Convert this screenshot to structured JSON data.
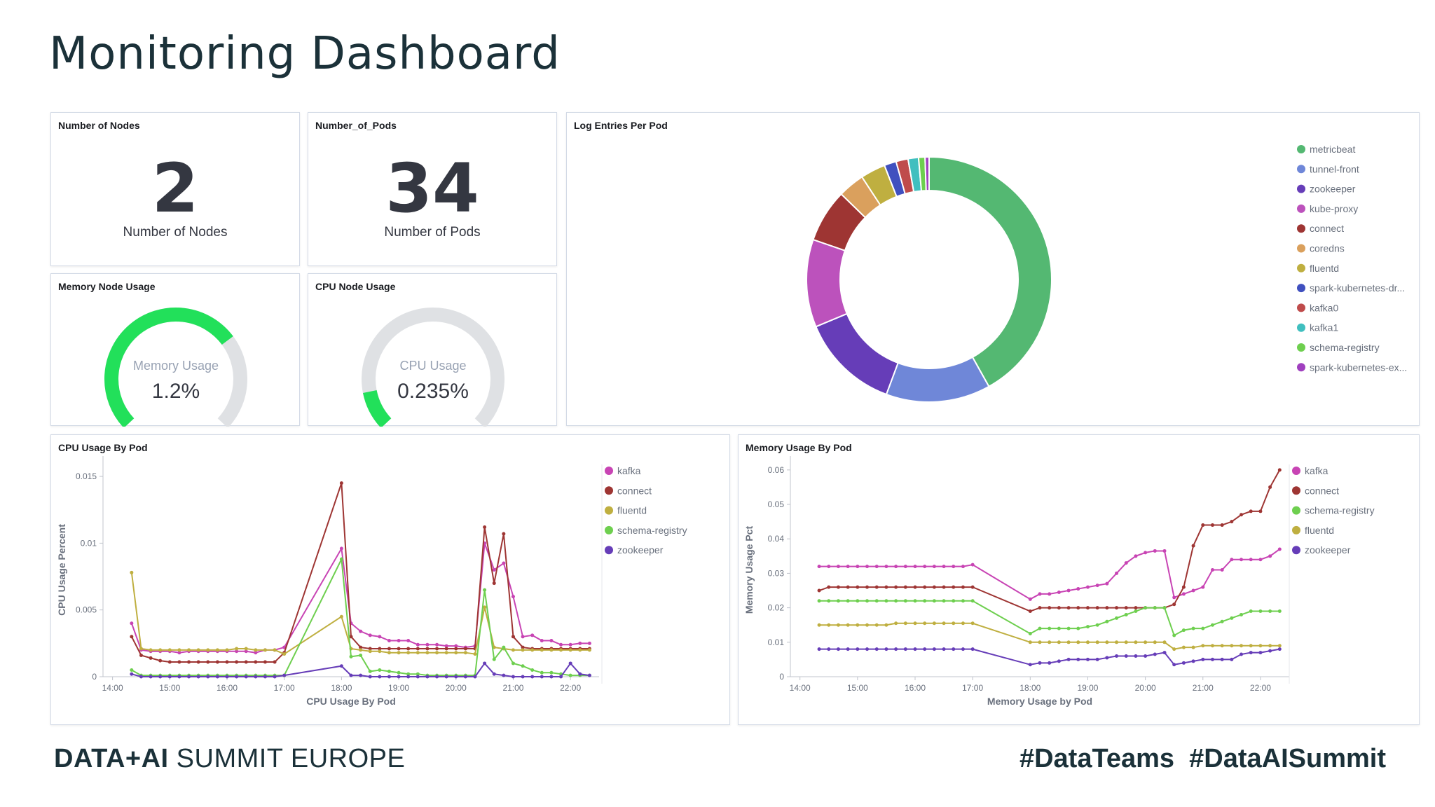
{
  "page": {
    "title": "Monitoring Dashboard"
  },
  "footer": {
    "brand_bold": "DATA+AI",
    "brand_rest": " SUMMIT EUROPE",
    "hashtags": "#DataTeams  #DataAISummit"
  },
  "panels": {
    "nodes": {
      "title": "Number of Nodes",
      "value": "2",
      "label": "Number of Nodes"
    },
    "pods": {
      "title": "Number_of_Pods",
      "value": "34",
      "label": "Number of Pods"
    },
    "memory_gauge": {
      "title": "Memory Node Usage",
      "label": "Memory Usage",
      "value": "1.2%",
      "fraction": 0.7
    },
    "cpu_gauge": {
      "title": "CPU Node Usage",
      "label": "CPU Usage",
      "value": "0.235%",
      "fraction": 0.12
    },
    "log_entries": {
      "title": "Log Entries Per Pod"
    },
    "cpu_by_pod": {
      "title": "CPU Usage By Pod"
    },
    "mem_by_pod": {
      "title": "Memory Usage By Pod"
    }
  },
  "colors": {
    "metricbeat": "#54b872",
    "tunnel-front": "#6f87d8",
    "zookeeper": "#663db8",
    "kube-proxy": "#bc52bc",
    "connect": "#9e3533",
    "coredns": "#daa05d",
    "fluentd": "#bfaf40",
    "spark-kubernetes-dr...": "#4050bf",
    "kafka0": "#bf4b4b",
    "kafka1": "#40bfbf",
    "schema-registry": "#6ecf4f",
    "spark-kubernetes-ex...": "#a040bf",
    "kafka": "#c844b4"
  },
  "chart_data": [
    {
      "type": "pie",
      "title": "Log Entries Per Pod",
      "donut": true,
      "legend_position": "right",
      "categories": [
        "metricbeat",
        "tunnel-front",
        "zookeeper",
        "kube-proxy",
        "connect",
        "coredns",
        "fluentd",
        "spark-kubernetes-dr...",
        "kafka0",
        "kafka1",
        "schema-registry",
        "spark-kubernetes-ex..."
      ],
      "values": [
        39.5,
        13.0,
        12.3,
        10.9,
        6.6,
        3.3,
        3.1,
        1.5,
        1.5,
        1.3,
        0.8,
        0.5
      ]
    },
    {
      "type": "line",
      "title": "CPU Usage By Pod",
      "xlabel": "CPU Usage By Pod",
      "ylabel": "CPU Usage Percent",
      "ylim": [
        0,
        0.016
      ],
      "yticks": [
        0,
        0.005,
        0.01,
        0.015
      ],
      "ytick_labels": [
        "0",
        "0.005",
        "0.01",
        "0.015"
      ],
      "xlim": [
        "13:50",
        "22:30"
      ],
      "xticks": [
        "14:00",
        "15:00",
        "16:00",
        "17:00",
        "18:00",
        "19:00",
        "20:00",
        "21:00",
        "22:00"
      ],
      "legend_position": "top-right",
      "x": [
        "14:20",
        "14:30",
        "14:40",
        "14:50",
        "15:00",
        "15:10",
        "15:20",
        "15:30",
        "15:40",
        "15:50",
        "16:00",
        "16:10",
        "16:20",
        "16:30",
        "16:40",
        "16:50",
        "17:00",
        "18:00",
        "18:10",
        "18:20",
        "18:30",
        "18:40",
        "18:50",
        "19:00",
        "19:10",
        "19:20",
        "19:30",
        "19:40",
        "19:50",
        "20:00",
        "20:10",
        "20:20",
        "20:30",
        "20:40",
        "20:50",
        "21:00",
        "21:10",
        "21:20",
        "21:30",
        "21:40",
        "21:50",
        "22:00",
        "22:10",
        "22:20"
      ],
      "series": [
        {
          "name": "kafka",
          "values": [
            0.004,
            0.002,
            0.0019,
            0.0019,
            0.0019,
            0.0018,
            0.0019,
            0.0019,
            0.0019,
            0.0019,
            0.0019,
            0.0019,
            0.0019,
            0.0018,
            0.002,
            0.002,
            0.0022,
            0.0096,
            0.004,
            0.0034,
            0.0031,
            0.003,
            0.0027,
            0.0027,
            0.0027,
            0.0024,
            0.0024,
            0.0024,
            0.0023,
            0.0023,
            0.0022,
            0.0023,
            0.01,
            0.008,
            0.0085,
            0.006,
            0.003,
            0.0031,
            0.0027,
            0.0027,
            0.0024,
            0.0024,
            0.0025,
            0.0025
          ]
        },
        {
          "name": "connect",
          "values": [
            0.003,
            0.0016,
            0.0014,
            0.0012,
            0.0011,
            0.0011,
            0.0011,
            0.0011,
            0.0011,
            0.0011,
            0.0011,
            0.0011,
            0.0011,
            0.0011,
            0.0011,
            0.0011,
            0.0018,
            0.0145,
            0.003,
            0.0022,
            0.0021,
            0.0021,
            0.0021,
            0.0021,
            0.0021,
            0.0021,
            0.0021,
            0.0021,
            0.0021,
            0.0021,
            0.0021,
            0.0021,
            0.0112,
            0.007,
            0.0107,
            0.003,
            0.0022,
            0.0021,
            0.0021,
            0.0021,
            0.0021,
            0.0021,
            0.0021,
            0.0021
          ]
        },
        {
          "name": "fluentd",
          "values": [
            0.0078,
            0.0021,
            0.002,
            0.002,
            0.002,
            0.002,
            0.002,
            0.002,
            0.002,
            0.002,
            0.002,
            0.0021,
            0.0021,
            0.002,
            0.002,
            0.002,
            0.0017,
            0.0045,
            0.0021,
            0.002,
            0.0019,
            0.0019,
            0.0018,
            0.0018,
            0.0018,
            0.0018,
            0.0018,
            0.0018,
            0.0018,
            0.0018,
            0.0018,
            0.0017,
            0.0052,
            0.0022,
            0.0021,
            0.002,
            0.002,
            0.002,
            0.002,
            0.002,
            0.002,
            0.002,
            0.002,
            0.002
          ]
        },
        {
          "name": "schema-registry",
          "values": [
            0.0005,
            0.0001,
            0.0001,
            0.0001,
            0.0001,
            0.0001,
            0.0001,
            0.0001,
            0.0001,
            0.0001,
            0.0001,
            0.0001,
            0.0001,
            0.0001,
            0.0001,
            0.0001,
            0.0001,
            0.0088,
            0.0015,
            0.0016,
            0.0004,
            0.0005,
            0.0004,
            0.0003,
            0.0002,
            0.0002,
            0.0001,
            0.0001,
            0.0001,
            0.0001,
            0.0001,
            0.0001,
            0.0065,
            0.0013,
            0.0022,
            0.001,
            0.0008,
            0.0005,
            0.0003,
            0.0003,
            0.0002,
            0.0001,
            0.0001,
            0.0001
          ]
        },
        {
          "name": "zookeeper",
          "values": [
            0.0002,
            0.0,
            0.0,
            0.0,
            0.0,
            0.0,
            0.0,
            0.0,
            0.0,
            0.0,
            0.0,
            0.0,
            0.0,
            0.0,
            0.0,
            0.0,
            0.0001,
            0.0008,
            0.0001,
            0.0001,
            0.0,
            0.0,
            0.0,
            0.0,
            0.0,
            0.0,
            0.0,
            0.0,
            0.0,
            0.0,
            0.0,
            0.0,
            0.001,
            0.0002,
            0.0001,
            0.0,
            0.0,
            0.0,
            0.0,
            0.0,
            0.0,
            0.001,
            0.0002,
            0.0001
          ]
        }
      ]
    },
    {
      "type": "line",
      "title": "Memory Usage By Pod",
      "xlabel": "Memory Usage by Pod",
      "ylabel": "Memory Usage Pct",
      "ylim": [
        0,
        0.062
      ],
      "yticks": [
        0,
        0.01,
        0.02,
        0.03,
        0.04,
        0.05,
        0.06
      ],
      "ytick_labels": [
        "0",
        "0.01",
        "0.02",
        "0.03",
        "0.04",
        "0.05",
        "0.06"
      ],
      "xlim": [
        "13:50",
        "22:30"
      ],
      "xticks": [
        "14:00",
        "15:00",
        "16:00",
        "17:00",
        "18:00",
        "19:00",
        "20:00",
        "21:00",
        "22:00"
      ],
      "legend_position": "top-right",
      "x": [
        "14:20",
        "14:30",
        "14:40",
        "14:50",
        "15:00",
        "15:10",
        "15:20",
        "15:30",
        "15:40",
        "15:50",
        "16:00",
        "16:10",
        "16:20",
        "16:30",
        "16:40",
        "16:50",
        "17:00",
        "18:00",
        "18:10",
        "18:20",
        "18:30",
        "18:40",
        "18:50",
        "19:00",
        "19:10",
        "19:20",
        "19:30",
        "19:40",
        "19:50",
        "20:00",
        "20:10",
        "20:20",
        "20:30",
        "20:40",
        "20:50",
        "21:00",
        "21:10",
        "21:20",
        "21:30",
        "21:40",
        "21:50",
        "22:00",
        "22:10",
        "22:20"
      ],
      "series": [
        {
          "name": "kafka",
          "values": [
            0.032,
            0.032,
            0.032,
            0.032,
            0.032,
            0.032,
            0.032,
            0.032,
            0.032,
            0.032,
            0.032,
            0.032,
            0.032,
            0.032,
            0.032,
            0.032,
            0.0325,
            0.0225,
            0.024,
            0.024,
            0.0245,
            0.025,
            0.0255,
            0.026,
            0.0265,
            0.027,
            0.03,
            0.033,
            0.035,
            0.036,
            0.0365,
            0.0365,
            0.023,
            0.024,
            0.025,
            0.026,
            0.031,
            0.031,
            0.034,
            0.034,
            0.034,
            0.034,
            0.035,
            0.037
          ]
        },
        {
          "name": "connect",
          "values": [
            0.025,
            0.026,
            0.026,
            0.026,
            0.026,
            0.026,
            0.026,
            0.026,
            0.026,
            0.026,
            0.026,
            0.026,
            0.026,
            0.026,
            0.026,
            0.026,
            0.026,
            0.019,
            0.02,
            0.02,
            0.02,
            0.02,
            0.02,
            0.02,
            0.02,
            0.02,
            0.02,
            0.02,
            0.02,
            0.02,
            0.02,
            0.02,
            0.021,
            0.026,
            0.038,
            0.044,
            0.044,
            0.044,
            0.045,
            0.047,
            0.048,
            0.048,
            0.055,
            0.06
          ]
        },
        {
          "name": "schema-registry",
          "values": [
            0.022,
            0.022,
            0.022,
            0.022,
            0.022,
            0.022,
            0.022,
            0.022,
            0.022,
            0.022,
            0.022,
            0.022,
            0.022,
            0.022,
            0.022,
            0.022,
            0.022,
            0.0125,
            0.014,
            0.014,
            0.014,
            0.014,
            0.014,
            0.0145,
            0.015,
            0.016,
            0.017,
            0.018,
            0.019,
            0.02,
            0.02,
            0.02,
            0.012,
            0.0135,
            0.014,
            0.014,
            0.015,
            0.016,
            0.017,
            0.018,
            0.019,
            0.019,
            0.019,
            0.019
          ]
        },
        {
          "name": "fluentd",
          "values": [
            0.015,
            0.015,
            0.015,
            0.015,
            0.015,
            0.015,
            0.015,
            0.015,
            0.0155,
            0.0155,
            0.0155,
            0.0155,
            0.0155,
            0.0155,
            0.0155,
            0.0155,
            0.0155,
            0.01,
            0.01,
            0.01,
            0.01,
            0.01,
            0.01,
            0.01,
            0.01,
            0.01,
            0.01,
            0.01,
            0.01,
            0.01,
            0.01,
            0.01,
            0.008,
            0.0085,
            0.0085,
            0.009,
            0.009,
            0.009,
            0.009,
            0.009,
            0.009,
            0.009,
            0.009,
            0.009
          ]
        },
        {
          "name": "zookeeper",
          "values": [
            0.008,
            0.008,
            0.008,
            0.008,
            0.008,
            0.008,
            0.008,
            0.008,
            0.008,
            0.008,
            0.008,
            0.008,
            0.008,
            0.008,
            0.008,
            0.008,
            0.008,
            0.0035,
            0.004,
            0.004,
            0.0045,
            0.005,
            0.005,
            0.005,
            0.005,
            0.0055,
            0.006,
            0.006,
            0.006,
            0.006,
            0.0065,
            0.007,
            0.0035,
            0.004,
            0.0045,
            0.005,
            0.005,
            0.005,
            0.005,
            0.0065,
            0.007,
            0.007,
            0.0075,
            0.008
          ]
        }
      ]
    }
  ]
}
